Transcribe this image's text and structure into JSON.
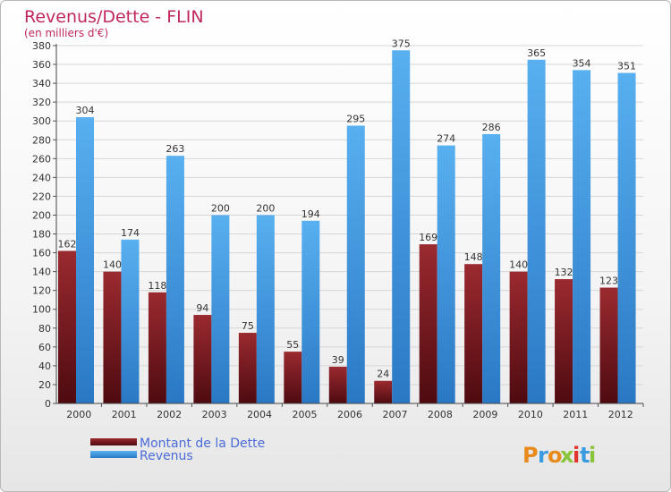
{
  "chart_data": {
    "type": "bar",
    "title": "Revenus/Dette - FLIN",
    "subtitle": "(en milliers d'€)",
    "categories": [
      "2000",
      "2001",
      "2002",
      "2003",
      "2004",
      "2005",
      "2006",
      "2007",
      "2008",
      "2009",
      "2010",
      "2011",
      "2012"
    ],
    "series": [
      {
        "name": "Montant de la Dette",
        "color": "#8a1c22",
        "values": [
          162,
          140,
          118,
          94,
          75,
          55,
          39,
          24,
          169,
          148,
          140,
          132,
          123
        ]
      },
      {
        "name": "Revenus",
        "color": "#3c9be4",
        "values": [
          304,
          174,
          263,
          200,
          200,
          194,
          295,
          375,
          274,
          286,
          365,
          354,
          351
        ]
      }
    ],
    "ylim": [
      0,
      380
    ],
    "ytick_step": 20,
    "grid": true,
    "legend_position": "bottom-left",
    "logo_text": "Proxiti"
  }
}
